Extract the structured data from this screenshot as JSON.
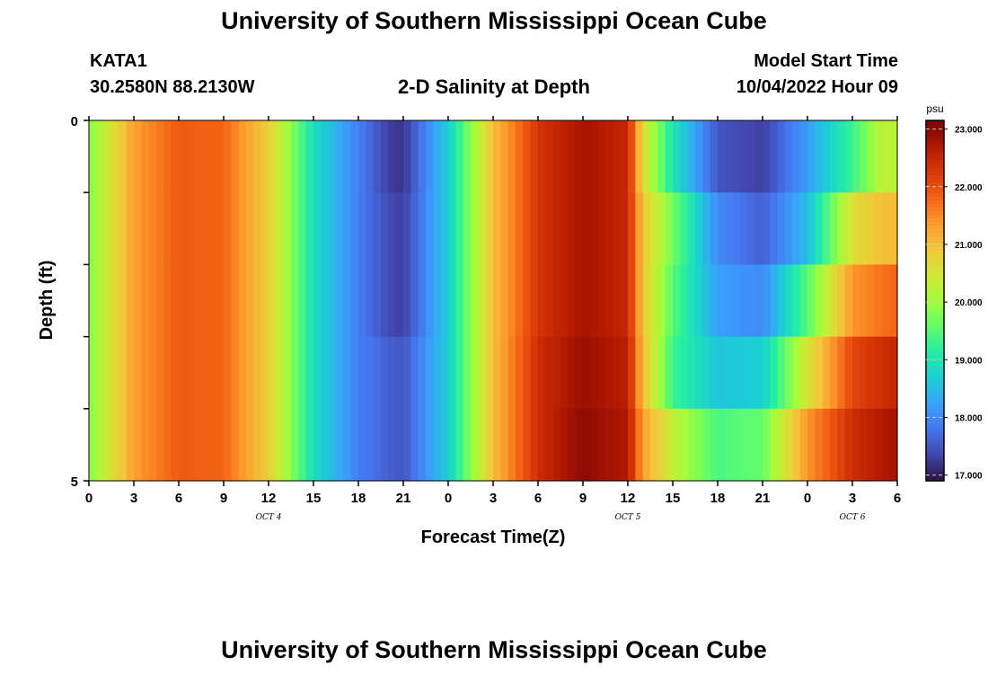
{
  "page": {
    "title": "University of Southern Mississippi Ocean Cube",
    "station_id": "KATA1",
    "station_coords": "30.2580N  88.2130W",
    "plot_title": "2-D Salinity at Depth",
    "model_start_label": "Model Start Time",
    "model_start_value": "10/04/2022 Hour 09",
    "footer_title": "University of Southern Mississippi Ocean Cube"
  },
  "chart_data": {
    "type": "heatmap",
    "xlabel": "Forecast Time(Z)",
    "ylabel": "Depth (ft)",
    "colorbar_unit": "psu",
    "x_tick_labels": [
      "0",
      "3",
      "6",
      "9",
      "12",
      "15",
      "18",
      "21",
      "0",
      "3",
      "6",
      "9",
      "12",
      "15",
      "18",
      "21",
      "0",
      "3",
      "6"
    ],
    "x_tick_hours": [
      0,
      3,
      6,
      9,
      12,
      15,
      18,
      21,
      24,
      27,
      30,
      33,
      36,
      39,
      42,
      45,
      48,
      51,
      54
    ],
    "date_labels": [
      {
        "text": "OCT 4",
        "hour": 12
      },
      {
        "text": "OCT 5",
        "hour": 36
      },
      {
        "text": "OCT 6",
        "hour": 51
      }
    ],
    "y_tick_labels": [
      "0",
      "5"
    ],
    "ylim": [
      0,
      5
    ],
    "xlim": [
      0,
      54
    ],
    "layer_depths_ft": [
      0.5,
      1.5,
      2.5,
      3.5,
      4.5
    ],
    "colorbar_range": [
      16.9,
      23.15
    ],
    "colorbar_ticks": [
      23.0,
      22.0,
      21.0,
      20.0,
      19.0,
      18.0,
      17.0
    ],
    "colorbar_tick_labels": [
      "23.000",
      "22.000",
      "21.000",
      "20.000",
      "19.000",
      "18.000",
      "17.000"
    ],
    "colorscale": [
      "#30123b",
      "#4145ab",
      "#4675ed",
      "#39a2fc",
      "#1bcfd4",
      "#24eca6",
      "#61fc6c",
      "#a4fc3b",
      "#d1e834",
      "#f3c63a",
      "#fe9b2d",
      "#f36315",
      "#d93806",
      "#b11901",
      "#7a0402"
    ],
    "time_hours": [
      0,
      3,
      6,
      9,
      12,
      15,
      18,
      20,
      21,
      24,
      27,
      30,
      33,
      36,
      37,
      39,
      42,
      45,
      48,
      51,
      53,
      54
    ],
    "salinity_psu": [
      [
        19.8,
        21.3,
        21.9,
        21.8,
        20.8,
        18.9,
        17.9,
        17.3,
        17.2,
        18.7,
        21.0,
        22.3,
        22.8,
        22.5,
        20.6,
        19.0,
        17.5,
        17.3,
        18.2,
        19.3,
        20.3,
        20.2
      ],
      [
        19.8,
        21.3,
        21.9,
        21.8,
        20.8,
        18.9,
        17.9,
        17.4,
        17.3,
        18.7,
        21.0,
        22.3,
        22.8,
        22.5,
        20.9,
        19.7,
        18.0,
        17.6,
        18.5,
        20.6,
        21.0,
        21.0
      ],
      [
        19.8,
        21.3,
        21.9,
        21.8,
        20.8,
        18.9,
        17.9,
        17.4,
        17.3,
        18.7,
        21.0,
        22.3,
        22.8,
        22.5,
        20.9,
        19.5,
        18.2,
        18.0,
        19.5,
        21.4,
        21.7,
        21.8
      ],
      [
        19.8,
        21.3,
        21.9,
        21.8,
        20.8,
        18.9,
        17.9,
        17.6,
        17.5,
        18.7,
        21.0,
        22.4,
        22.9,
        22.6,
        21.0,
        19.3,
        18.6,
        18.7,
        20.5,
        22.1,
        22.4,
        22.5
      ],
      [
        19.8,
        21.3,
        21.9,
        21.8,
        20.8,
        18.9,
        17.9,
        17.6,
        17.5,
        18.7,
        21.0,
        22.4,
        23.0,
        22.7,
        21.3,
        20.3,
        19.4,
        19.6,
        21.4,
        22.4,
        22.7,
        22.8
      ]
    ]
  }
}
